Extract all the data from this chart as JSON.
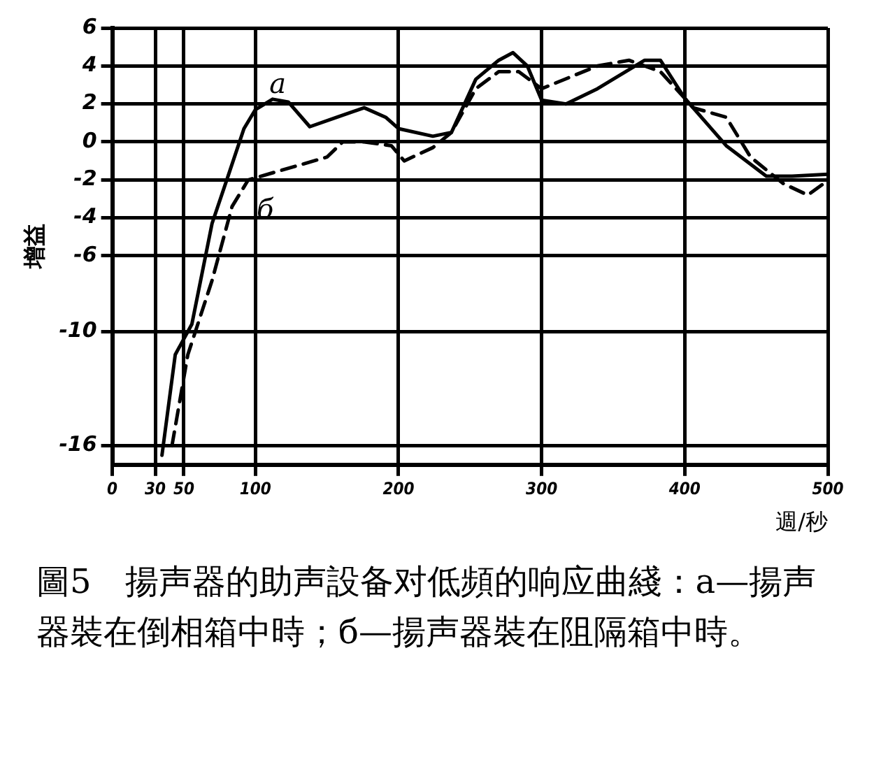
{
  "chart_data": {
    "type": "line",
    "xlabel": "週/秒",
    "ylabel": "增益",
    "xlim": [
      0,
      500
    ],
    "xticks": [
      0,
      30,
      50,
      100,
      200,
      300,
      400,
      500
    ],
    "ylim": [
      -17,
      6
    ],
    "yticks": [
      6,
      4,
      2,
      0,
      -2,
      -4,
      -6,
      -10,
      -16
    ],
    "grid": true,
    "legend": false,
    "marker": "none",
    "annotations": [
      "圖5　揚声器的助声設备对低頻的响应曲綫：a—揚声器裝在倒相箱中時；б—揚声器裝在阻隔箱中時。"
    ],
    "series": [
      {
        "name": "a",
        "color": "#000000",
        "line_style": "solid",
        "x": [
          34.7,
          44,
          55.6,
          69.7,
          80.9,
          92,
          100,
          112,
          123,
          138,
          157,
          176,
          191,
          200,
          224,
          237,
          254,
          270,
          280,
          290,
          300,
          317,
          339,
          372,
          383,
          400,
          429,
          457,
          475,
          500
        ],
        "values": [
          -16.5,
          -11.2,
          -9.6,
          -4.3,
          -1.8,
          0.7,
          1.7,
          2.25,
          2.1,
          0.8,
          1.3,
          1.8,
          1.3,
          0.7,
          0.3,
          0.5,
          3.3,
          4.3,
          4.7,
          4.0,
          2.2,
          2.0,
          2.8,
          4.3,
          4.3,
          2.3,
          -0.2,
          -1.8,
          -1.8,
          -1.7
        ]
      },
      {
        "name": "б",
        "color": "#000000",
        "line_style": "dashed",
        "x": [
          41.7,
          52.8,
          69.7,
          83.7,
          95,
          150,
          161,
          176,
          195,
          204,
          224,
          237,
          254,
          270,
          284,
          300,
          339,
          361,
          383,
          406,
          429,
          446,
          469,
          486,
          497
        ],
        "values": [
          -16,
          -11.2,
          -7.3,
          -3.4,
          -2,
          -0.8,
          0,
          0,
          -0.2,
          -1,
          -0.3,
          0.5,
          2.8,
          3.7,
          3.7,
          2.8,
          4.0,
          4.3,
          3.7,
          1.8,
          1.3,
          -0.8,
          -2.2,
          -2.8,
          -2.2
        ]
      }
    ]
  }
}
